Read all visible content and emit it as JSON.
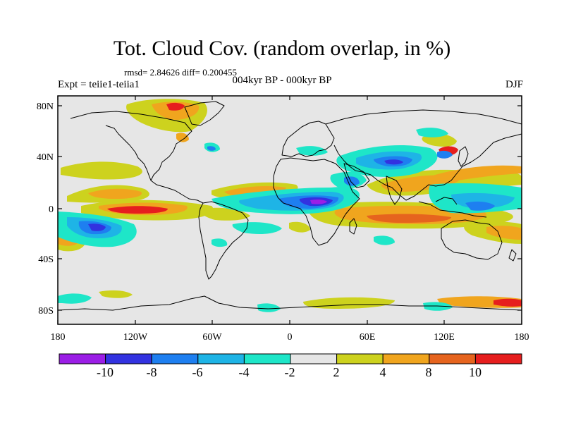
{
  "title": "Tot. Cloud Cov. (random overlap, in %)",
  "stats": "rmsd= 2.84626 diff= 0.200455",
  "experiment": "Expt = teiie1-teiia1",
  "period": "004kyr BP - 000kyr BP",
  "season": "DJF",
  "x_ticks": [
    "180",
    "120W",
    "60W",
    "0",
    "60E",
    "120E",
    "180"
  ],
  "y_ticks": [
    "80N",
    "40N",
    "0",
    "40S",
    "80S"
  ],
  "colorbar": {
    "labels": [
      "-10",
      "-8",
      "-6",
      "-4",
      "-2",
      "2",
      "4",
      "8",
      "10"
    ],
    "colors": [
      "#9b1ee6",
      "#3232e0",
      "#1e7ff0",
      "#1eb4e6",
      "#1ee6c8",
      "#e6e6e6",
      "#cdd21e",
      "#f0a51e",
      "#e6641e",
      "#e61e1e"
    ]
  },
  "background_color": "#e6e6e6"
}
